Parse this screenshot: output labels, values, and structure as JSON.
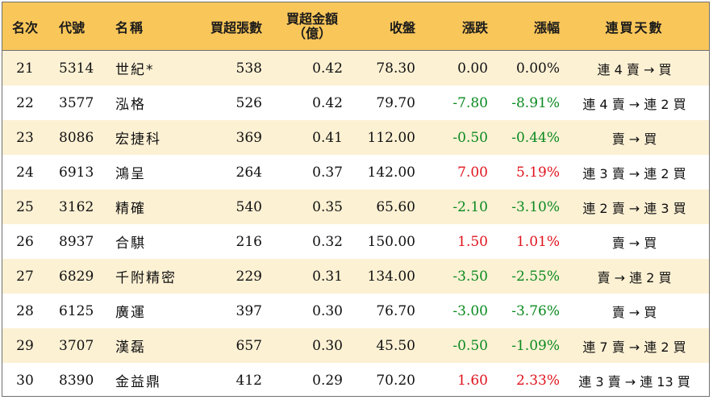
{
  "headers": {
    "rank": "名次",
    "code": "代號",
    "name": "名稱",
    "volume": "買超張數",
    "amount_line1": "買超金額",
    "amount_line2": "（億）",
    "close": "收盤",
    "change": "漲跌",
    "pct": "漲幅",
    "days": "連買天數"
  },
  "colors": {
    "header_bg": "#f9c65a",
    "stripe_bg": "#fdf1d4",
    "up": "#e0141e",
    "down": "#0a8a1f"
  },
  "rows": [
    {
      "rank": "21",
      "code": "5314",
      "name": "世紀*",
      "volume": "538",
      "amount": "0.42",
      "close": "78.30",
      "change": "0.00",
      "pct": "0.00%",
      "days": "連 4 賣 → 買",
      "dir": "flat"
    },
    {
      "rank": "22",
      "code": "3577",
      "name": "泓格",
      "volume": "526",
      "amount": "0.42",
      "close": "79.70",
      "change": "-7.80",
      "pct": "-8.91%",
      "days": "連 4 賣 → 連 2 買",
      "dir": "down"
    },
    {
      "rank": "23",
      "code": "8086",
      "name": "宏捷科",
      "volume": "369",
      "amount": "0.41",
      "close": "112.00",
      "change": "-0.50",
      "pct": "-0.44%",
      "days": "賣 → 買",
      "dir": "down"
    },
    {
      "rank": "24",
      "code": "6913",
      "name": "鴻呈",
      "volume": "264",
      "amount": "0.37",
      "close": "142.00",
      "change": "7.00",
      "pct": "5.19%",
      "days": "連 3 賣 → 連 2 買",
      "dir": "up"
    },
    {
      "rank": "25",
      "code": "3162",
      "name": "精確",
      "volume": "540",
      "amount": "0.35",
      "close": "65.60",
      "change": "-2.10",
      "pct": "-3.10%",
      "days": "連 2 賣 → 連 3 買",
      "dir": "down"
    },
    {
      "rank": "26",
      "code": "8937",
      "name": "合騏",
      "volume": "216",
      "amount": "0.32",
      "close": "150.00",
      "change": "1.50",
      "pct": "1.01%",
      "days": "賣 → 買",
      "dir": "up"
    },
    {
      "rank": "27",
      "code": "6829",
      "name": "千附精密",
      "volume": "229",
      "amount": "0.31",
      "close": "134.00",
      "change": "-3.50",
      "pct": "-2.55%",
      "days": "賣 → 連 2 買",
      "dir": "down"
    },
    {
      "rank": "28",
      "code": "6125",
      "name": "廣運",
      "volume": "397",
      "amount": "0.30",
      "close": "76.70",
      "change": "-3.00",
      "pct": "-3.76%",
      "days": "賣 → 買",
      "dir": "down"
    },
    {
      "rank": "29",
      "code": "3707",
      "name": "漢磊",
      "volume": "657",
      "amount": "0.30",
      "close": "45.50",
      "change": "-0.50",
      "pct": "-1.09%",
      "days": "連 7 賣 → 連 2 買",
      "dir": "down"
    },
    {
      "rank": "30",
      "code": "8390",
      "name": "金益鼎",
      "volume": "412",
      "amount": "0.29",
      "close": "70.20",
      "change": "1.60",
      "pct": "2.33%",
      "days": "連 3 賣 → 連 13 買",
      "dir": "up"
    }
  ]
}
